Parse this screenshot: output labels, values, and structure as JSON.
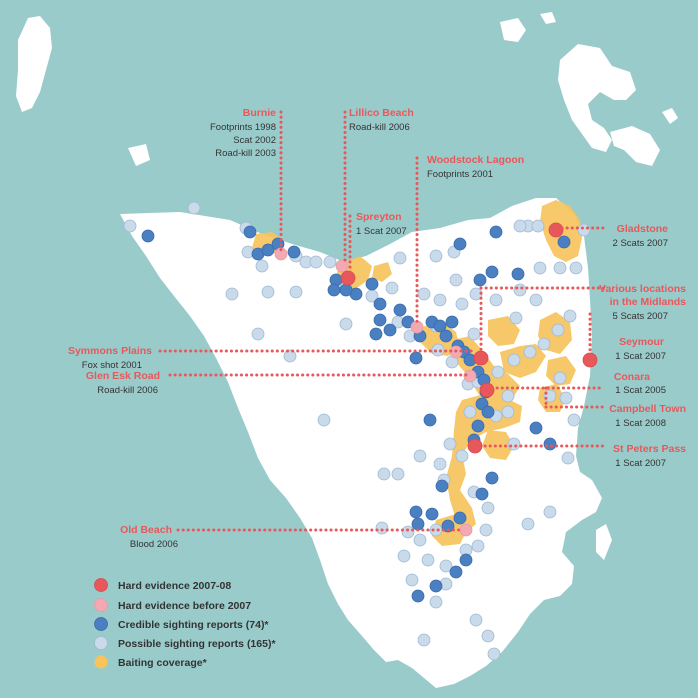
{
  "colors": {
    "sea": "#9acbcb",
    "land": "#ffffff",
    "baiting": "#f7c35a",
    "hard_recent": "#e8585a",
    "hard_before": "#f2a9b2",
    "credible": "#4a7fc1",
    "possible": "#c9daea",
    "label": "#e8585a",
    "text": "#333333"
  },
  "labels": [
    {
      "id": "burnie",
      "title": "Burnie",
      "lines": [
        "Footprints 1998",
        "Scat 2002",
        "Road-kill 2003"
      ]
    },
    {
      "id": "lillico",
      "title": "Lillico Beach",
      "lines": [
        "Road-kill 2006"
      ]
    },
    {
      "id": "woodstock",
      "title": "Woodstock Lagoon",
      "lines": [
        "Footprints 2001"
      ]
    },
    {
      "id": "spreyton",
      "title": "Spreyton",
      "lines": [
        "1 Scat 2007"
      ]
    },
    {
      "id": "gladstone",
      "title": "Gladstone",
      "lines": [
        "2 Scats 2007"
      ]
    },
    {
      "id": "midlands",
      "title": "Various locations",
      "title2": "in the Midlands",
      "lines": [
        "5 Scats 2007"
      ]
    },
    {
      "id": "symmons",
      "title": "Symmons Plains",
      "lines": [
        "Fox shot 2001"
      ]
    },
    {
      "id": "glenesk",
      "title": "Glen Esk Road",
      "lines": [
        "Road-kill 2006"
      ]
    },
    {
      "id": "seymour",
      "title": "Seymour",
      "lines": [
        "1 Scat 2007"
      ]
    },
    {
      "id": "conara",
      "title": "Conara",
      "lines": [
        "1 Scat 2005"
      ]
    },
    {
      "id": "campbell",
      "title": "Campbell Town",
      "lines": [
        "1 Scat 2008"
      ]
    },
    {
      "id": "stpeters",
      "title": "St Peters Pass",
      "lines": [
        "1 Scat 2007"
      ]
    },
    {
      "id": "oldbeach",
      "title": "Old Beach",
      "lines": [
        "Blood 2006"
      ]
    }
  ],
  "legend": [
    {
      "key": "hard_recent",
      "label": "Hard evidence 2007-08",
      "icon": "red-dot"
    },
    {
      "key": "hard_before",
      "label": "Hard evidence before 2007",
      "icon": "pink-dot"
    },
    {
      "key": "credible",
      "label": "Credible sighting reports (74)*",
      "icon": "blue-dot"
    },
    {
      "key": "possible",
      "label": "Possible sighting reports (165)*",
      "icon": "light-blue-dot"
    },
    {
      "key": "baiting",
      "label": "Baiting coverage*",
      "icon": "yellow-dot"
    }
  ]
}
